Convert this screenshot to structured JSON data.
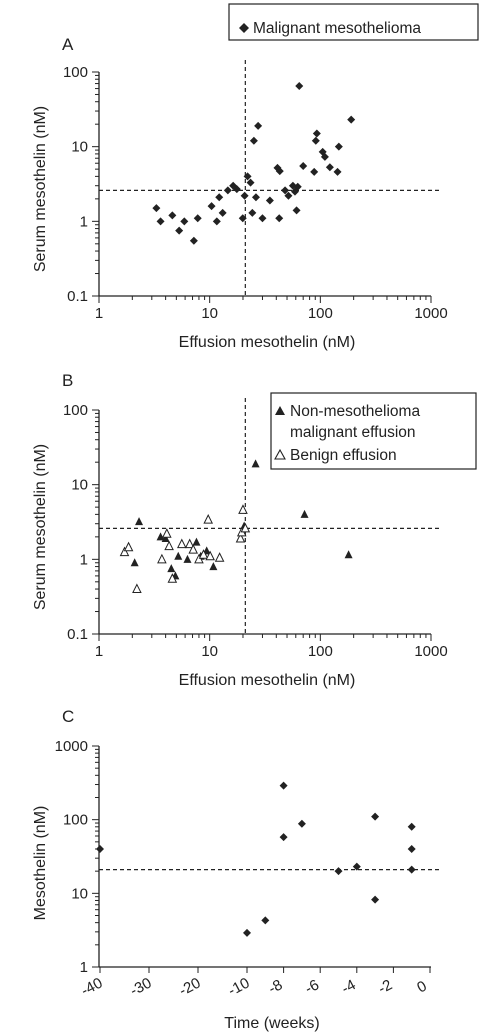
{
  "chart_data": [
    {
      "panel_label": "A",
      "type": "scatter",
      "xscale": "log",
      "yscale": "log",
      "xlim": [
        1,
        1000
      ],
      "ylim": [
        0.1,
        100
      ],
      "xticks": [
        1,
        10,
        100,
        1000
      ],
      "yticks": [
        0.1,
        1,
        10,
        100
      ],
      "xtick_labels": [
        "1",
        "10",
        "100",
        "1000"
      ],
      "ytick_labels": [
        "0.1",
        "1",
        "10",
        "100"
      ],
      "xlabel": "Effusion mesothelin (nM)",
      "ylabel": "Serum mesothelin (nM)",
      "ref_lines": {
        "x": 21,
        "y": 2.6
      },
      "legend": {
        "position": "top-right",
        "boxed": true
      },
      "series": [
        {
          "name": "Malignant mesothelioma",
          "marker": "diamond",
          "points": [
            [
              3.3,
              1.5
            ],
            [
              3.6,
              1.0
            ],
            [
              4.6,
              1.2
            ],
            [
              5.3,
              0.75
            ],
            [
              5.9,
              1.0
            ],
            [
              7.2,
              0.55
            ],
            [
              7.8,
              1.1
            ],
            [
              10.4,
              1.6
            ],
            [
              11.6,
              1.0
            ],
            [
              12.2,
              2.1
            ],
            [
              13.1,
              1.3
            ],
            [
              14.6,
              2.6
            ],
            [
              16.3,
              3.0
            ],
            [
              17.6,
              2.7
            ],
            [
              19.9,
              1.1
            ],
            [
              20.7,
              2.2
            ],
            [
              22.0,
              4.0
            ],
            [
              23.4,
              3.3
            ],
            [
              24.3,
              1.3
            ],
            [
              25.1,
              12.0
            ],
            [
              26.2,
              2.1
            ],
            [
              27.4,
              19.0
            ],
            [
              30.0,
              1.1
            ],
            [
              35.0,
              1.9
            ],
            [
              41.0,
              5.2
            ],
            [
              42.5,
              1.1
            ],
            [
              43.0,
              4.7
            ],
            [
              48.0,
              2.6
            ],
            [
              51.5,
              2.2
            ],
            [
              56.5,
              3.0
            ],
            [
              59.0,
              2.5
            ],
            [
              61.0,
              1.4
            ],
            [
              62.5,
              2.9
            ],
            [
              64.5,
              65.0
            ],
            [
              70.0,
              5.5
            ],
            [
              88.0,
              4.6
            ],
            [
              91.0,
              12.0
            ],
            [
              93.0,
              15.0
            ],
            [
              105.0,
              8.5
            ],
            [
              110.0,
              7.3
            ],
            [
              122.0,
              5.3
            ],
            [
              143.0,
              4.6
            ],
            [
              147.0,
              10.0
            ],
            [
              190.0,
              23.0
            ]
          ]
        }
      ]
    },
    {
      "panel_label": "B",
      "type": "scatter",
      "xscale": "log",
      "yscale": "log",
      "xlim": [
        1,
        1000
      ],
      "ylim": [
        0.1,
        100
      ],
      "xticks": [
        1,
        10,
        100,
        1000
      ],
      "yticks": [
        0.1,
        1,
        10,
        100
      ],
      "xtick_labels": [
        "1",
        "10",
        "100",
        "1000"
      ],
      "ytick_labels": [
        "0.1",
        "1",
        "10",
        "100"
      ],
      "xlabel": "Effusion mesothelin (nM)",
      "ylabel": "Serum mesothelin (nM)",
      "ref_lines": {
        "x": 21,
        "y": 2.6
      },
      "legend": {
        "position": "top-right",
        "boxed": true
      },
      "series": [
        {
          "name_lines": [
            "Non-mesothelioma",
            "malignant effusion"
          ],
          "marker": "triangle-filled",
          "points": [
            [
              2.1,
              0.9
            ],
            [
              2.3,
              3.2
            ],
            [
              3.6,
              2.0
            ],
            [
              4.0,
              1.9
            ],
            [
              4.5,
              0.75
            ],
            [
              4.9,
              0.6
            ],
            [
              5.2,
              1.1
            ],
            [
              6.3,
              1.0
            ],
            [
              7.6,
              1.7
            ],
            [
              8.3,
              1.1
            ],
            [
              9.4,
              1.3
            ],
            [
              10.8,
              0.8
            ],
            [
              20.5,
              2.8
            ],
            [
              26.0,
              19.0
            ],
            [
              72.0,
              4.0
            ],
            [
              180.0,
              1.15
            ]
          ]
        },
        {
          "name": "Benign effusion",
          "marker": "triangle-open",
          "points": [
            [
              1.7,
              1.25
            ],
            [
              1.85,
              1.45
            ],
            [
              2.2,
              0.4
            ],
            [
              3.7,
              1.0
            ],
            [
              4.1,
              2.2
            ],
            [
              4.3,
              1.5
            ],
            [
              4.6,
              0.55
            ],
            [
              5.6,
              1.6
            ],
            [
              6.6,
              1.6
            ],
            [
              7.1,
              1.35
            ],
            [
              8.0,
              1.0
            ],
            [
              8.8,
              1.15
            ],
            [
              9.7,
              3.4
            ],
            [
              10.1,
              1.1
            ],
            [
              12.3,
              1.05
            ],
            [
              19.0,
              1.9
            ],
            [
              19.5,
              2.3
            ],
            [
              20.0,
              4.6
            ],
            [
              21.0,
              2.6
            ]
          ]
        }
      ]
    },
    {
      "panel_label": "C",
      "type": "scatter",
      "xscale": "broken",
      "yscale": "log",
      "xticks": [
        -40,
        -30,
        -20,
        -10,
        -8,
        -6,
        -4,
        -2,
        0
      ],
      "xtick_labels": [
        "-40",
        "-30",
        "-20",
        "-10",
        "-8",
        "-6",
        "-4",
        "-2",
        "0"
      ],
      "yticks": [
        1,
        10,
        100,
        1000
      ],
      "ytick_labels": [
        "1",
        "10",
        "100",
        "1000"
      ],
      "ylim": [
        1,
        1000
      ],
      "xlabel": "Time (weeks)",
      "ylabel": "Mesothelin (nM)",
      "ref_lines": {
        "y": 21
      },
      "series": [
        {
          "marker": "diamond",
          "points": [
            [
              -40,
              40
            ],
            [
              -10,
              2.9
            ],
            [
              -9,
              4.3
            ],
            [
              -8,
              290
            ],
            [
              -8,
              58
            ],
            [
              -7,
              88
            ],
            [
              -5,
              20
            ],
            [
              -4,
              23
            ],
            [
              -3,
              8.2
            ],
            [
              -3,
              110
            ],
            [
              -1,
              80
            ],
            [
              -1,
              40
            ],
            [
              -1,
              21
            ]
          ]
        }
      ]
    }
  ]
}
